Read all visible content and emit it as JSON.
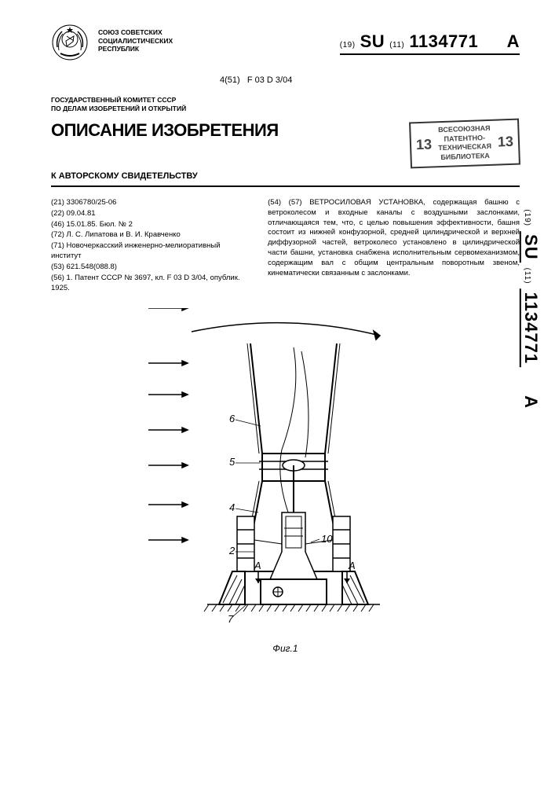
{
  "union": "СОЮЗ СОВЕТСКИХ\nСОЦИАЛИСТИЧЕСКИХ\nРЕСПУБЛИК",
  "pubnum": {
    "prefix19": "(19)",
    "cc": "SU",
    "prefix11": "(11)",
    "number": "1134771",
    "suffix": "A"
  },
  "classification_prefix": "4(51)",
  "classification": "F 03 D 3/04",
  "committee": "ГОСУДАРСТВЕННЫЙ КОМИТЕТ СССР\nПО ДЕЛАМ ИЗОБРЕТЕНИЙ И ОТКРЫТИЙ",
  "title": "ОПИСАНИЕ ИЗОБРЕТЕНИЯ",
  "subtitle": "К АВТОРСКОМУ СВИДЕТЕЛЬСТВУ",
  "stamp": {
    "num_left": "13",
    "text": "ВСЕСОЮЗНАЯ\nПАТЕНТНО-\nТЕХНИЧЕСКАЯ\nБИБЛИОТЕКА",
    "num_right": "13"
  },
  "biblio": [
    "(21) 3306780/25-06",
    "(22) 09.04.81",
    "(46) 15.01.85. Бюл. № 2",
    "(72) Л. С. Липатова и В. И. Кравченко",
    "(71) Новочеркасский инженерно-мелиоративный институт",
    "(53) 621.548(088.8)",
    "(56) 1. Патент СССР № 3697, кл. F 03 D 3/04, опублик. 1925."
  ],
  "abstract": "(54) (57) ВЕТРОСИЛОВАЯ УСТАНОВКА, содержащая башню с ветроколесом и входные каналы с воздушными заслонками, отличающаяся тем, что, с целью повышения эффективности, башня состоит из нижней конфузорной, средней цилиндрической и верхней диффузорной частей, ветроколесо установлено в цилиндрической части башни, установка снабжена исполнительным сервомеханизмом, содержащим вал с общим центральным поворотным звеном, кинематически связанным с заслонками.",
  "figure": {
    "caption": "Фиг.1",
    "labels": [
      "2",
      "4",
      "5",
      "6",
      "7",
      "10"
    ],
    "wind_arrows": 7,
    "markers": [
      "A",
      "A"
    ],
    "colors": {
      "stroke": "#000000",
      "hatch": "#000000",
      "bg": "#ffffff"
    },
    "stroke_width_thin": 1,
    "stroke_width_thick": 2
  },
  "side_label": {
    "prefix19": "(19)",
    "cc": "SU",
    "prefix11": "(11)",
    "number": "1134771",
    "suffix": "A"
  }
}
